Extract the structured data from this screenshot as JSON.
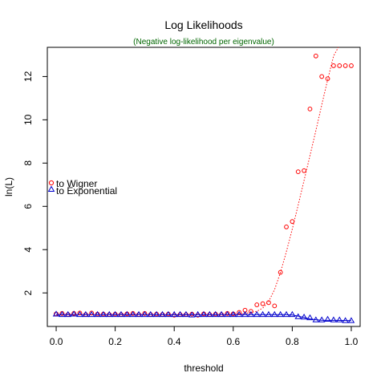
{
  "chart_data": {
    "type": "scatter",
    "title": "Log Likelihoods",
    "subtitle": "(Negative log-likelihood per eigenvalue)",
    "xlabel": "threshold",
    "ylabel": "ln(L)",
    "xlim": [
      -0.03,
      1.03
    ],
    "ylim": [
      0.45,
      13.35
    ],
    "x_ticks": [
      0.0,
      0.2,
      0.4,
      0.6,
      0.8,
      1.0
    ],
    "x_tick_labels": [
      "0.0",
      "0.2",
      "0.4",
      "0.6",
      "0.8",
      "1.0"
    ],
    "y_ticks": [
      2,
      4,
      6,
      8,
      10,
      12
    ],
    "y_tick_labels": [
      "2",
      "4",
      "6",
      "8",
      "10",
      "12"
    ],
    "grid": false,
    "legend_position": "left",
    "series": [
      {
        "name": "to Wigner",
        "marker": "circle",
        "color": "#ff0000",
        "x": [
          0.0,
          0.02,
          0.04,
          0.06,
          0.08,
          0.1,
          0.12,
          0.14,
          0.16,
          0.18,
          0.2,
          0.22,
          0.24,
          0.26,
          0.28,
          0.3,
          0.32,
          0.34,
          0.36,
          0.38,
          0.4,
          0.42,
          0.44,
          0.46,
          0.48,
          0.5,
          0.52,
          0.54,
          0.56,
          0.58,
          0.6,
          0.62,
          0.64,
          0.66,
          0.68,
          0.7,
          0.72,
          0.74,
          0.76,
          0.78,
          0.8,
          0.82,
          0.84,
          0.86,
          0.88,
          0.9,
          0.92,
          0.94,
          0.96,
          0.98,
          1.0
        ],
        "y": [
          1.03,
          1.05,
          1.0,
          1.05,
          1.07,
          1.0,
          1.07,
          1.02,
          1.02,
          1.0,
          1.02,
          1.0,
          1.03,
          1.05,
          1.0,
          1.05,
          1.0,
          1.02,
          1.0,
          1.02,
          0.97,
          1.0,
          1.0,
          1.02,
          0.97,
          1.03,
          1.0,
          1.02,
          1.0,
          1.05,
          1.03,
          1.1,
          1.2,
          1.15,
          1.45,
          1.5,
          1.55,
          1.4,
          2.95,
          5.05,
          5.3,
          7.6,
          7.65,
          10.5,
          12.95,
          12.0,
          11.9,
          12.5,
          12.5,
          12.5,
          12.5
        ]
      },
      {
        "name": "to Exponential",
        "marker": "triangle",
        "color": "#0000cc",
        "x": [
          0.0,
          0.02,
          0.04,
          0.06,
          0.08,
          0.1,
          0.12,
          0.14,
          0.16,
          0.18,
          0.2,
          0.22,
          0.24,
          0.26,
          0.28,
          0.3,
          0.32,
          0.34,
          0.36,
          0.38,
          0.4,
          0.42,
          0.44,
          0.46,
          0.48,
          0.5,
          0.52,
          0.54,
          0.56,
          0.58,
          0.6,
          0.62,
          0.64,
          0.66,
          0.68,
          0.7,
          0.72,
          0.74,
          0.76,
          0.78,
          0.8,
          0.82,
          0.84,
          0.86,
          0.88,
          0.9,
          0.92,
          0.94,
          0.96,
          0.98,
          1.0
        ],
        "y": [
          1.02,
          1.0,
          1.0,
          1.02,
          1.0,
          1.0,
          1.0,
          1.0,
          1.0,
          1.0,
          1.0,
          1.0,
          1.0,
          1.0,
          1.0,
          1.0,
          1.0,
          1.0,
          1.0,
          1.0,
          1.0,
          1.0,
          1.0,
          0.98,
          1.0,
          1.0,
          1.0,
          1.0,
          1.0,
          1.0,
          1.0,
          1.0,
          1.0,
          1.0,
          1.0,
          1.0,
          1.0,
          1.0,
          1.0,
          1.0,
          1.0,
          0.9,
          0.88,
          0.85,
          0.75,
          0.75,
          0.78,
          0.75,
          0.75,
          0.72,
          0.72
        ]
      }
    ],
    "fit_lines": [
      {
        "series": "to Wigner",
        "color": "#ff0000",
        "style": "dotted",
        "x": [
          0.0,
          0.1,
          0.2,
          0.3,
          0.4,
          0.5,
          0.6,
          0.64,
          0.68,
          0.7,
          0.72,
          0.74,
          0.76,
          0.78,
          0.8,
          0.82,
          0.84,
          0.86,
          0.88,
          0.9,
          0.92,
          0.94,
          0.956
        ],
        "y": [
          1.0,
          1.0,
          1.0,
          1.0,
          0.98,
          0.99,
          1.0,
          1.05,
          1.15,
          1.3,
          1.6,
          2.15,
          2.95,
          3.9,
          4.95,
          6.05,
          7.2,
          8.35,
          9.5,
          10.7,
          11.85,
          12.95,
          13.35
        ]
      },
      {
        "series": "to Exponential",
        "color": "#0000cc",
        "style": "solid",
        "x": [
          0.0,
          0.1,
          0.2,
          0.3,
          0.4,
          0.5,
          0.6,
          0.7,
          0.78,
          0.8,
          0.82,
          0.84,
          0.86,
          0.88,
          0.9,
          0.95,
          1.0
        ],
        "y": [
          1.0,
          1.0,
          1.0,
          1.0,
          0.99,
          0.99,
          1.0,
          1.0,
          1.0,
          0.98,
          0.93,
          0.86,
          0.8,
          0.76,
          0.74,
          0.73,
          0.72
        ]
      }
    ]
  }
}
